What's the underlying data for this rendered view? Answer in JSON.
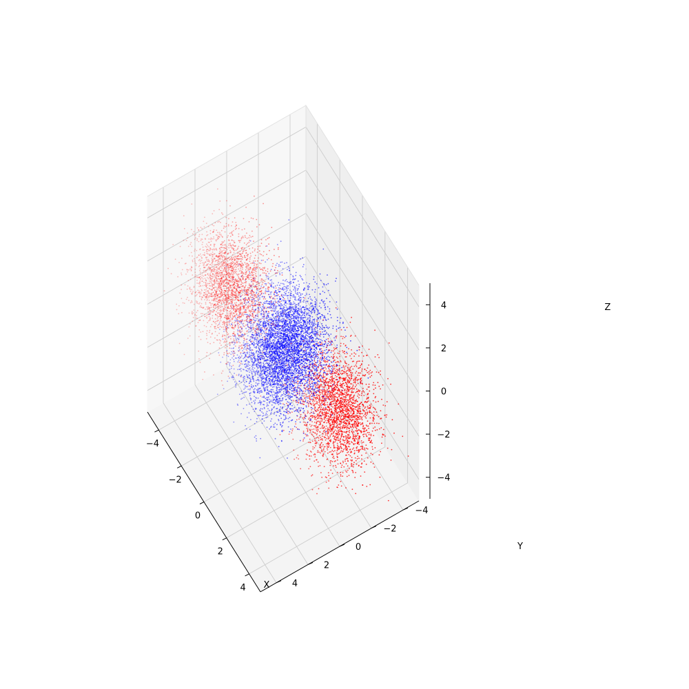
{
  "chart_data": {
    "type": "scatter",
    "projection": "3d",
    "title": "",
    "xlabel": "X",
    "ylabel": "Y",
    "zlabel": "Z",
    "xlim": [
      -5,
      5
    ],
    "ylim": [
      -5,
      5
    ],
    "zlim": [
      -5,
      5
    ],
    "x_ticks": [
      -4,
      -2,
      0,
      2,
      4
    ],
    "y_ticks": [
      -4,
      -2,
      0,
      2,
      4
    ],
    "z_ticks": [
      -4,
      -2,
      0,
      2,
      4
    ],
    "x_tick_labels": [
      "−4",
      "−2",
      "0",
      "2",
      "4"
    ],
    "y_tick_labels": [
      "−4",
      "−2",
      "0",
      "2",
      "4"
    ],
    "z_tick_labels": [
      "−4",
      "−2",
      "0",
      "2",
      "4"
    ],
    "grid": true,
    "legend": "none",
    "clusters": [
      {
        "color": "#ff0000",
        "center": [
          -2,
          2,
          2
        ],
        "spread": 1.0,
        "approx_count": 5000
      },
      {
        "color": "#0000ff",
        "center": [
          -2,
          -2,
          -2
        ],
        "spread": 1.0,
        "approx_count": 5000
      },
      {
        "color": "#0000ff",
        "center": [
          2,
          2,
          2
        ],
        "spread": 1.0,
        "approx_count": 5000
      },
      {
        "color": "#ff0000",
        "center": [
          2,
          -2,
          -2
        ],
        "spread": 1.0,
        "approx_count": 5000
      }
    ],
    "colors": {
      "red": "#ff0000",
      "blue": "#0000ff",
      "pane": "#f2f2f2",
      "grid": "#cccccc"
    }
  }
}
